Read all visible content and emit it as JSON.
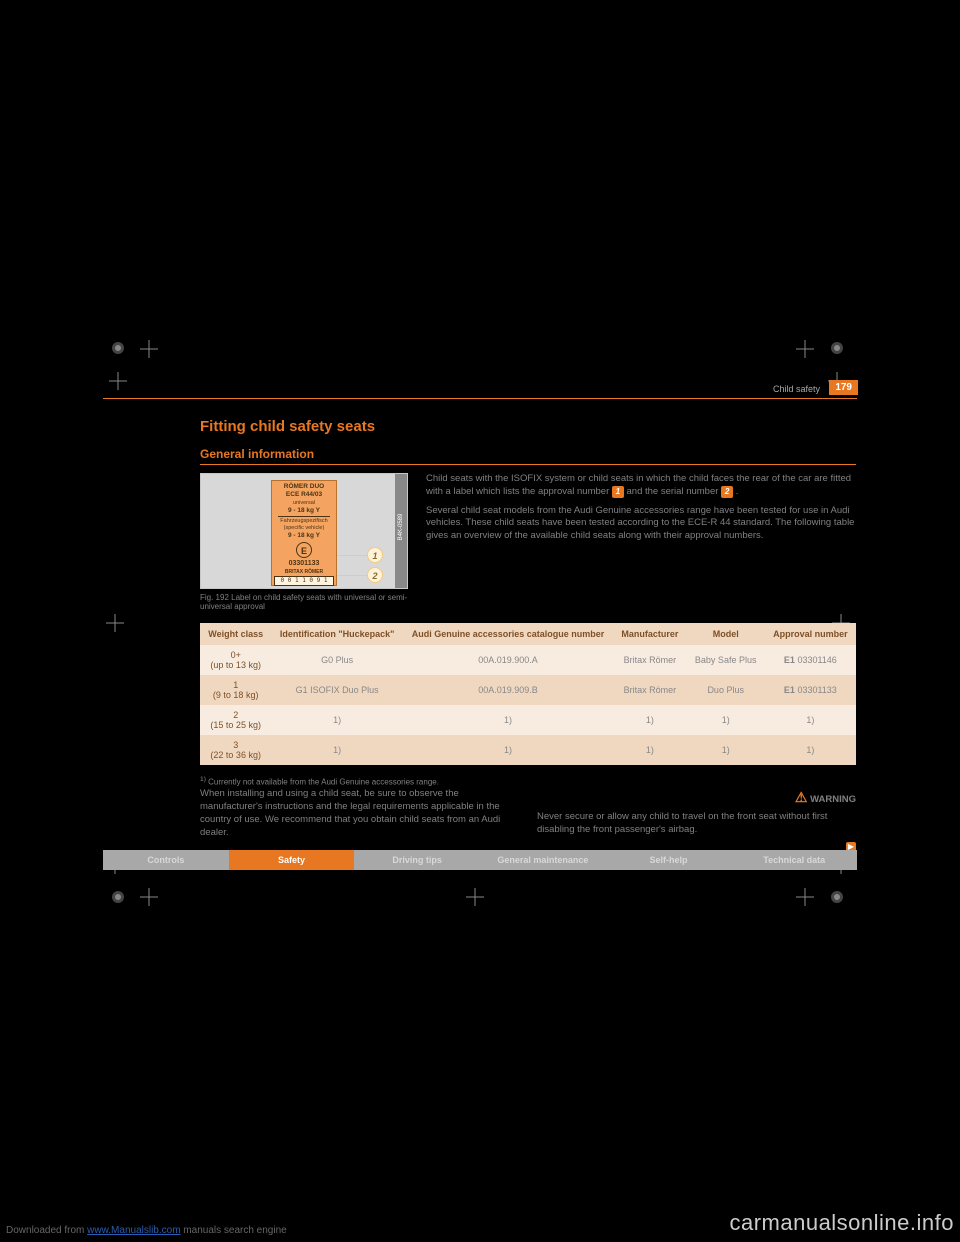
{
  "page": {
    "number": "179",
    "watermark": "carmanualsonline.info",
    "download_prefix": "Downloaded from ",
    "download_link": "www.Manualslib.com",
    "download_suffix": " manuals search engine",
    "header_category": "Child safety"
  },
  "headings": {
    "h1": "Fitting child safety seats",
    "h2": "General information"
  },
  "figure": {
    "side_code": "B4K-0589",
    "sticker": {
      "line1": "RÖMER DUO",
      "line2": "ECE R44/03",
      "line3": "universal",
      "line4": "9 - 18 kg Y",
      "line5": "Fahrzeugspezifisch",
      "line6": "(specific vehicle)",
      "line7": "9 - 18 kg Y",
      "circ": "E",
      "approval": "03301133",
      "maker": "BRITAX RÖMER",
      "barcode": "0 0 1 1 0 9 1"
    },
    "callouts": {
      "c1": "1",
      "c2": "2"
    },
    "caption": "Fig. 192  Label on child safety seats with universal or semi-universal approval"
  },
  "right_text": {
    "p1a": "Child seats with the ISOFIX system or child seats in which the child faces the rear of the car are fitted with a label which lists the approval number ",
    "p1b": " and the serial number ",
    "p1c": ".",
    "p2": "Several child seat models from the Audi Genuine accessories range have been tested for use in Audi vehicles. These child seats have been tested according to the ECE-R 44 standard. The following table gives an overview of the available child seats along with their approval numbers."
  },
  "table": {
    "headers": [
      "Weight class",
      "Identification \"Huckepack\"",
      "Audi Genuine accessories catalogue number",
      "Manufacturer",
      "Model",
      "Approval number"
    ],
    "rows": [
      {
        "wc_top": "0+",
        "wc_bot": "(up to 13 kg)",
        "ident": "G0 Plus",
        "cat": "00A.019.900.A",
        "manu": "Britax Römer",
        "model": "Baby Safe Plus",
        "appr_pref": "E1",
        "appr_num": " 03301146"
      },
      {
        "wc_top": "1",
        "wc_bot": "(9 to 18 kg)",
        "ident": "G1 ISOFIX Duo Plus",
        "cat": "00A.019.909.B",
        "manu": "Britax Römer",
        "model": "Duo Plus",
        "appr_pref": "E1",
        "appr_num": " 03301133"
      },
      {
        "wc_top": "2",
        "wc_bot": "(15 to 25 kg)",
        "ident": "1)",
        "cat": "1)",
        "manu": "1)",
        "model": "1)",
        "appr_pref": "",
        "appr_num": "1)"
      },
      {
        "wc_top": "3",
        "wc_bot": "(22 to 36 kg)",
        "ident": "1)",
        "cat": "1)",
        "manu": "1)",
        "model": "1)",
        "appr_pref": "",
        "appr_num": "1)"
      }
    ],
    "styling": {
      "header_bg": "#f0d8c0",
      "row_alt_a": "#f8ece0",
      "row_alt_b": "#f0d8c0",
      "header_color": "#7d5028"
    }
  },
  "after_table": {
    "footnote_sup": "1)",
    "footnote_text": "Currently not available from the Audi Genuine accessories range.",
    "left_para": "When installing and using a child seat, be sure to observe the manufacturer's instructions and the legal requirements applicable in the country of use. We recommend that you obtain child seats from an Audi dealer.",
    "right_bold": "WARNING",
    "right_para": "Never secure or allow any child to travel on the front seat without first disabling the front passenger's airbag."
  },
  "navbar": {
    "items": [
      "Controls",
      "Safety",
      "Driving tips",
      "General maintenance",
      "Self-help",
      "Technical data"
    ],
    "active_index": 1
  },
  "colors": {
    "accent": "#e87722",
    "text": "#808080",
    "bg": "#000000"
  }
}
